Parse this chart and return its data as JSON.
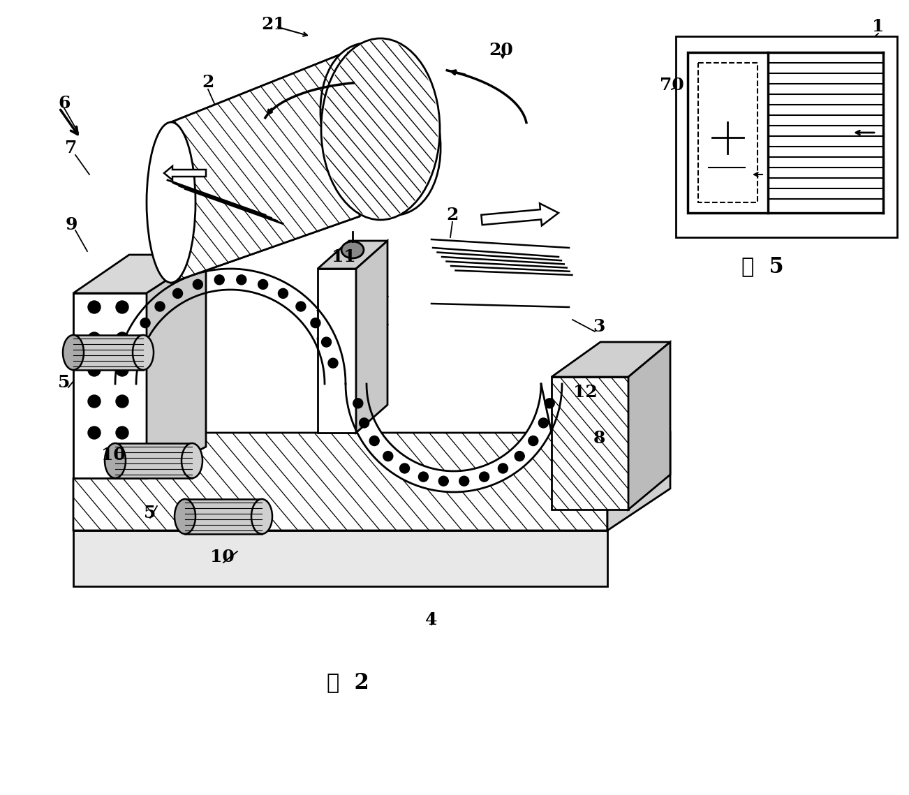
{
  "background_color": "#ffffff",
  "line_color": "#000000",
  "fig_width": 13.02,
  "fig_height": 11.39,
  "dpi": 100,
  "labels": [
    [
      "1",
      1258,
      38
    ],
    [
      "2",
      298,
      118
    ],
    [
      "2",
      648,
      308
    ],
    [
      "3",
      858,
      468
    ],
    [
      "4",
      618,
      888
    ],
    [
      "5",
      92,
      548
    ],
    [
      "5",
      215,
      735
    ],
    [
      "6",
      92,
      148
    ],
    [
      "7",
      102,
      212
    ],
    [
      "8",
      858,
      628
    ],
    [
      "9",
      102,
      322
    ],
    [
      "10",
      162,
      652
    ],
    [
      "10",
      318,
      798
    ],
    [
      "11",
      492,
      368
    ],
    [
      "12",
      838,
      562
    ],
    [
      "20",
      718,
      72
    ],
    [
      "21",
      392,
      35
    ],
    [
      "70",
      962,
      122
    ]
  ],
  "fig2_text": [
    "图  2",
    498,
    978
  ],
  "fig5_text": [
    "图  5",
    1092,
    382
  ]
}
